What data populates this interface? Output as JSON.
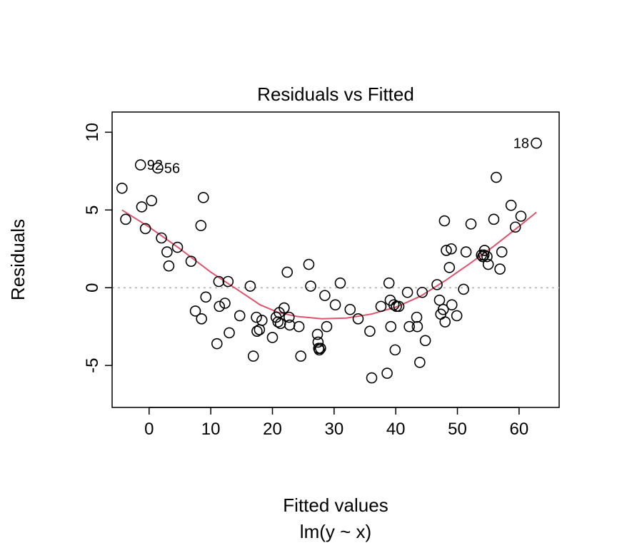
{
  "chart_data": {
    "type": "scatter",
    "title": "Residuals vs Fitted",
    "xlabel": "Fitted values",
    "subtitle": "lm(y ~ x)",
    "ylabel": "Residuals",
    "xlim": [
      -6,
      66.5
    ],
    "ylim": [
      -7.7,
      11.3
    ],
    "x_ticks": [
      0,
      10,
      20,
      30,
      40,
      50,
      60
    ],
    "y_ticks": [
      -5,
      0,
      5,
      10
    ],
    "reference_line": {
      "y": 0,
      "style": "dotted",
      "color": "#bebebe"
    },
    "colors": {
      "points": "#000000",
      "smoother": "#df536b"
    },
    "points": [
      {
        "x": -4.4,
        "y": 6.4
      },
      {
        "x": -3.8,
        "y": 4.4
      },
      {
        "x": -1.4,
        "y": 7.9
      },
      {
        "x": -1.2,
        "y": 5.2
      },
      {
        "x": -0.6,
        "y": 3.8
      },
      {
        "x": 0.4,
        "y": 5.6
      },
      {
        "x": 1.4,
        "y": 7.7
      },
      {
        "x": 2.0,
        "y": 3.2
      },
      {
        "x": 2.9,
        "y": 2.3
      },
      {
        "x": 3.2,
        "y": 1.4
      },
      {
        "x": 4.6,
        "y": 2.6
      },
      {
        "x": 6.8,
        "y": 1.7
      },
      {
        "x": 7.5,
        "y": -1.5
      },
      {
        "x": 8.4,
        "y": 4.0
      },
      {
        "x": 8.5,
        "y": -2.0
      },
      {
        "x": 8.8,
        "y": 5.8
      },
      {
        "x": 9.2,
        "y": -0.6
      },
      {
        "x": 11.0,
        "y": -3.6
      },
      {
        "x": 11.3,
        "y": 0.4
      },
      {
        "x": 11.4,
        "y": -1.2
      },
      {
        "x": 12.3,
        "y": -1.0
      },
      {
        "x": 12.8,
        "y": 0.4
      },
      {
        "x": 13.0,
        "y": -2.9
      },
      {
        "x": 14.7,
        "y": -1.8
      },
      {
        "x": 16.4,
        "y": 0.1
      },
      {
        "x": 16.9,
        "y": -4.4
      },
      {
        "x": 17.4,
        "y": -1.9
      },
      {
        "x": 17.5,
        "y": -2.8
      },
      {
        "x": 17.9,
        "y": -2.7
      },
      {
        "x": 18.3,
        "y": -2.1
      },
      {
        "x": 20.0,
        "y": -3.2
      },
      {
        "x": 20.6,
        "y": -1.9
      },
      {
        "x": 20.9,
        "y": -2.2
      },
      {
        "x": 21.1,
        "y": -1.6
      },
      {
        "x": 21.3,
        "y": -2.3
      },
      {
        "x": 21.9,
        "y": -1.3
      },
      {
        "x": 22.4,
        "y": 1.0
      },
      {
        "x": 22.7,
        "y": -1.9
      },
      {
        "x": 22.8,
        "y": -2.4
      },
      {
        "x": 24.3,
        "y": -2.5
      },
      {
        "x": 24.6,
        "y": -4.4
      },
      {
        "x": 25.9,
        "y": 1.5
      },
      {
        "x": 26.2,
        "y": 0.1
      },
      {
        "x": 27.3,
        "y": -3.0
      },
      {
        "x": 27.4,
        "y": -3.5
      },
      {
        "x": 27.5,
        "y": -3.9
      },
      {
        "x": 27.6,
        "y": -4.0
      },
      {
        "x": 27.8,
        "y": -3.9
      },
      {
        "x": 28.5,
        "y": -0.5
      },
      {
        "x": 28.8,
        "y": -2.5
      },
      {
        "x": 30.2,
        "y": -1.1
      },
      {
        "x": 31.0,
        "y": 0.3
      },
      {
        "x": 32.6,
        "y": -1.4
      },
      {
        "x": 33.9,
        "y": -2.0
      },
      {
        "x": 35.8,
        "y": -2.8
      },
      {
        "x": 36.1,
        "y": -5.8
      },
      {
        "x": 37.6,
        "y": -1.2
      },
      {
        "x": 38.6,
        "y": -5.5
      },
      {
        "x": 38.9,
        "y": 0.3
      },
      {
        "x": 39.1,
        "y": -0.8
      },
      {
        "x": 39.2,
        "y": -2.5
      },
      {
        "x": 39.7,
        "y": -1.1
      },
      {
        "x": 39.9,
        "y": -4.0
      },
      {
        "x": 40.1,
        "y": -1.2
      },
      {
        "x": 40.5,
        "y": -1.2
      },
      {
        "x": 41.9,
        "y": -0.3
      },
      {
        "x": 42.2,
        "y": -2.5
      },
      {
        "x": 43.4,
        "y": -1.9
      },
      {
        "x": 43.5,
        "y": -2.5
      },
      {
        "x": 43.9,
        "y": -4.8
      },
      {
        "x": 44.3,
        "y": -0.3
      },
      {
        "x": 44.8,
        "y": -3.4
      },
      {
        "x": 46.7,
        "y": 0.2
      },
      {
        "x": 47.1,
        "y": -0.8
      },
      {
        "x": 47.3,
        "y": -1.7
      },
      {
        "x": 47.7,
        "y": -1.4
      },
      {
        "x": 47.9,
        "y": 4.3
      },
      {
        "x": 48.0,
        "y": -2.2
      },
      {
        "x": 48.2,
        "y": 2.4
      },
      {
        "x": 48.7,
        "y": 1.3
      },
      {
        "x": 49.0,
        "y": 2.5
      },
      {
        "x": 49.1,
        "y": -1.1
      },
      {
        "x": 49.9,
        "y": -1.8
      },
      {
        "x": 51.0,
        "y": -0.1
      },
      {
        "x": 51.4,
        "y": 2.3
      },
      {
        "x": 52.2,
        "y": 4.1
      },
      {
        "x": 53.9,
        "y": 2.1
      },
      {
        "x": 54.1,
        "y": 2.0
      },
      {
        "x": 54.3,
        "y": 2.1
      },
      {
        "x": 54.4,
        "y": 2.4
      },
      {
        "x": 54.8,
        "y": 2.0
      },
      {
        "x": 55.0,
        "y": 1.5
      },
      {
        "x": 55.9,
        "y": 4.4
      },
      {
        "x": 56.3,
        "y": 7.1
      },
      {
        "x": 56.9,
        "y": 1.2
      },
      {
        "x": 57.2,
        "y": 2.3
      },
      {
        "x": 58.7,
        "y": 5.3
      },
      {
        "x": 59.4,
        "y": 3.9
      },
      {
        "x": 60.3,
        "y": 4.6
      },
      {
        "x": 62.8,
        "y": 9.3
      }
    ],
    "smoother": [
      {
        "x": -4.4,
        "y": 5.0
      },
      {
        "x": 0,
        "y": 3.9
      },
      {
        "x": 5,
        "y": 2.5
      },
      {
        "x": 10,
        "y": 1.0
      },
      {
        "x": 15,
        "y": -0.3
      },
      {
        "x": 18,
        "y": -1.1
      },
      {
        "x": 21,
        "y": -1.6
      },
      {
        "x": 24,
        "y": -1.85
      },
      {
        "x": 28,
        "y": -2.0
      },
      {
        "x": 32,
        "y": -1.95
      },
      {
        "x": 36,
        "y": -1.7
      },
      {
        "x": 40,
        "y": -1.25
      },
      {
        "x": 44,
        "y": -0.55
      },
      {
        "x": 48,
        "y": 0.45
      },
      {
        "x": 52,
        "y": 1.55
      },
      {
        "x": 56,
        "y": 2.7
      },
      {
        "x": 60,
        "y": 3.95
      },
      {
        "x": 62.8,
        "y": 4.85
      }
    ],
    "annotations": [
      {
        "label": "92",
        "x": -1.4,
        "y": 7.9
      },
      {
        "label": "56",
        "x": 1.4,
        "y": 7.7
      },
      {
        "label": "18",
        "x": 62.8,
        "y": 9.3,
        "side": "left"
      }
    ]
  }
}
